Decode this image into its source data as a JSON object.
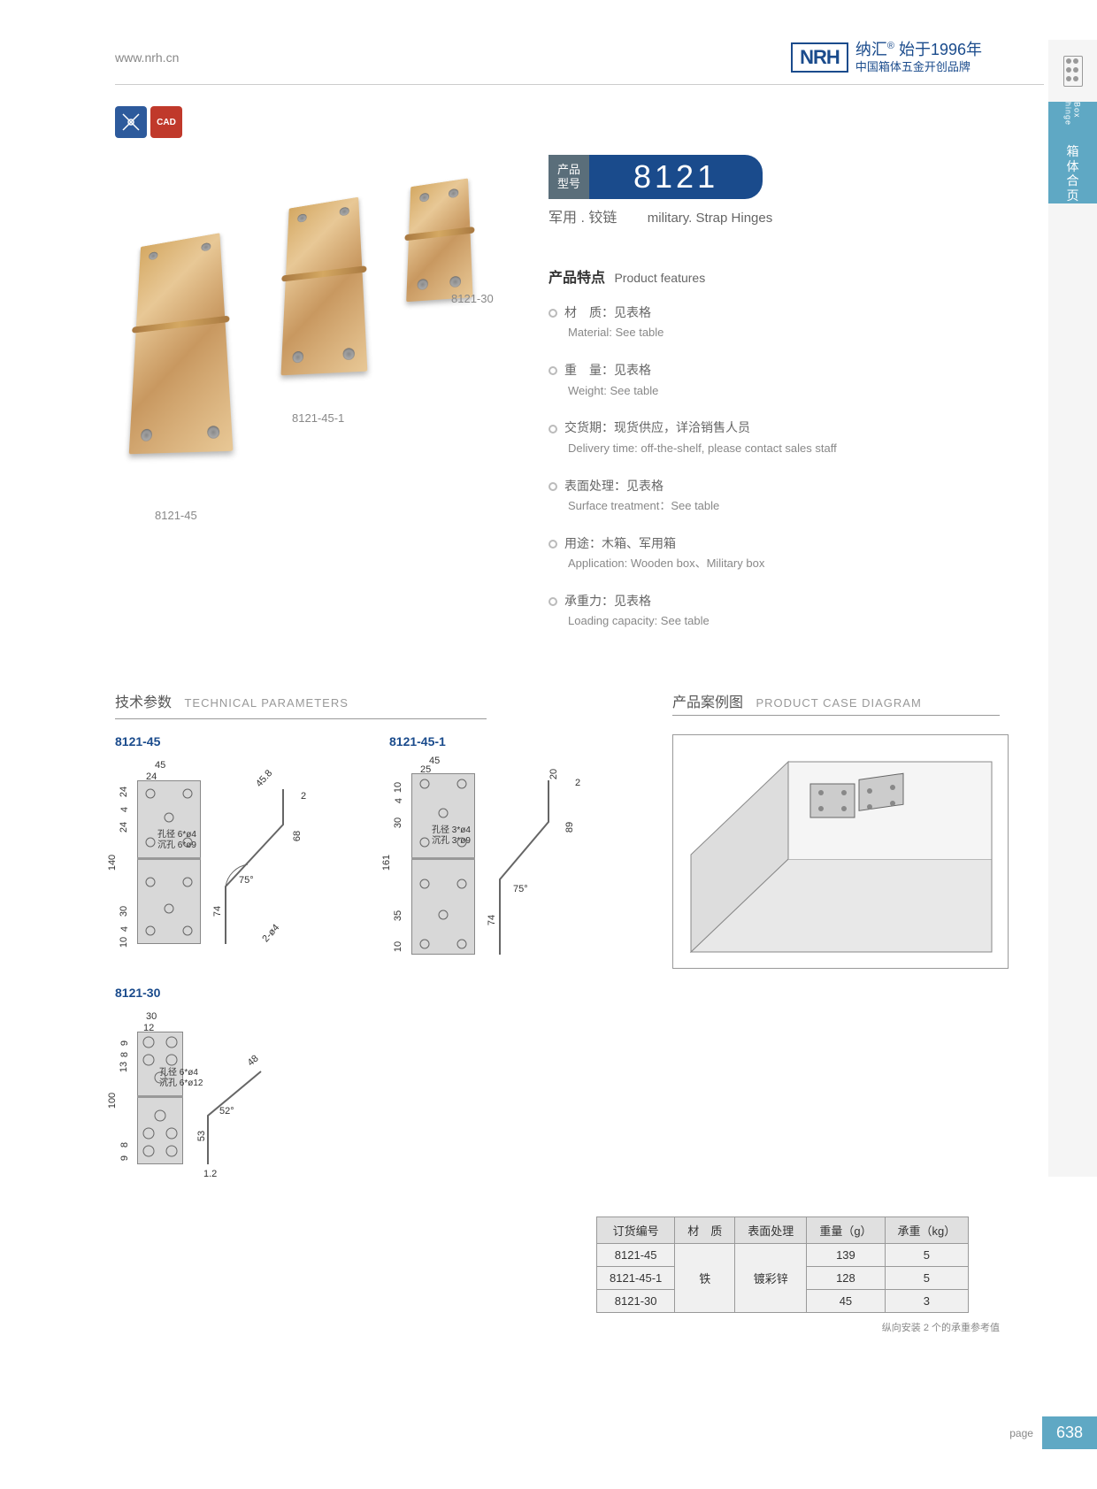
{
  "header": {
    "url": "www.nrh.cn",
    "brand_logo": "NRH",
    "brand_cn": "纳汇",
    "brand_year": "始于1996年",
    "brand_tagline": "中国箱体五金开创品牌"
  },
  "side_tab": {
    "en": "Box hinge",
    "cn": [
      "箱",
      "体",
      "合",
      "页"
    ]
  },
  "icons": {
    "blue_label": "✕",
    "red_label": "CAD"
  },
  "product": {
    "pn_label_1": "产品",
    "pn_label_2": "型号",
    "number": "8121",
    "subtitle_cn": "军用 . 铰链",
    "subtitle_en": "military. Strap Hinges",
    "img_labels": {
      "a": "8121-45",
      "b": "8121-45-1",
      "c": "8121-30"
    }
  },
  "features": {
    "title_cn": "产品特点",
    "title_en": "Product features",
    "items": [
      {
        "cn": "材　质：见表格",
        "en": "Material: See table"
      },
      {
        "cn": "重　量：见表格",
        "en": "Weight: See table"
      },
      {
        "cn": "交货期：现货供应，详洽销售人员",
        "en": "Delivery time: off-the-shelf, please contact sales staff"
      },
      {
        "cn": "表面处理：见表格",
        "en": "Surface treatment：See table"
      },
      {
        "cn": "用途：木箱、军用箱",
        "en": "Application: Wooden box、Military box"
      },
      {
        "cn": "承重力：见表格",
        "en": "Loading capacity: See table"
      }
    ]
  },
  "tech": {
    "title_cn": "技术参数",
    "title_en": "TECHNICAL PARAMETERS",
    "case_cn": "产品案例图",
    "case_en": "PRODUCT CASE DIAGRAM",
    "drawings": {
      "d1": {
        "label": "8121-45",
        "dims": [
          "45",
          "24",
          "24",
          "4",
          "24",
          "140",
          "30",
          "4",
          "10",
          "45.8",
          "2",
          "68",
          "74",
          "75°",
          "2-ø4"
        ],
        "note1": "孔径 6*ø4",
        "note2": "沉孔 6*ø9"
      },
      "d2": {
        "label": "8121-45-1",
        "dims": [
          "45",
          "25",
          "10",
          "4",
          "30",
          "161",
          "35",
          "10",
          "20",
          "2",
          "89",
          "74",
          "75°"
        ],
        "note1": "孔径 3*ø4",
        "note2": "沉孔 3*ø9"
      },
      "d3": {
        "label": "8121-30",
        "dims": [
          "30",
          "12",
          "9",
          "8",
          "13",
          "100",
          "8",
          "9",
          "48",
          "53",
          "52°",
          "1.2"
        ],
        "note1": "孔径 6*ø4",
        "note2": "沉孔 6*ø12"
      }
    }
  },
  "table": {
    "headers": [
      "订货编号",
      "材　质",
      "表面处理",
      "重量（g）",
      "承重（kg）"
    ],
    "rows": [
      [
        "8121-45",
        "",
        "",
        "139",
        "5"
      ],
      [
        "8121-45-1",
        "铁",
        "镀彩锌",
        "128",
        "5"
      ],
      [
        "8121-30",
        "",
        "",
        "45",
        "3"
      ]
    ],
    "note": "纵向安装 2 个的承重参考值"
  },
  "page": {
    "label": "page",
    "number": "638"
  },
  "colors": {
    "brand_blue": "#1a4b8c",
    "tab_blue": "#5fa8c4",
    "icon_blue": "#2d5a9c",
    "icon_red": "#c0392b",
    "pn_grey": "#5a6e7a",
    "hinge_brass": "#d4a862",
    "tech_grey": "#d8d8d8"
  }
}
